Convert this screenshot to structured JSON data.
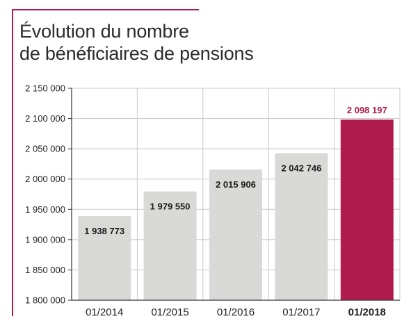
{
  "chart_data": {
    "type": "bar",
    "title_lines": [
      "Évolution du nombre",
      "de bénéficiaires de pensions"
    ],
    "categories": [
      "01/2014",
      "01/2015",
      "01/2016",
      "01/2017",
      "01/2018"
    ],
    "values": [
      1938773,
      1979550,
      2015906,
      2042746,
      2098197
    ],
    "value_labels": [
      "1 938 773",
      "1 979 550",
      "2 015 906",
      "2 042 746",
      "2 098 197"
    ],
    "highlight_index": 4,
    "ylim": [
      1800000,
      2150000
    ],
    "yticks": [
      1800000,
      1850000,
      1900000,
      1950000,
      2000000,
      2050000,
      2100000,
      2150000
    ],
    "ytick_labels": [
      "1 800 000",
      "1 850 000",
      "1 900 000",
      "1 950 000",
      "2 000 000",
      "2 050 000",
      "2 100 000",
      "2 150 000"
    ],
    "grid": true,
    "colors": {
      "bar": "#d9d9d8",
      "highlight": "#b01c4e",
      "accent_line": "#b01c4e",
      "grid": "#c8c8c8"
    }
  }
}
